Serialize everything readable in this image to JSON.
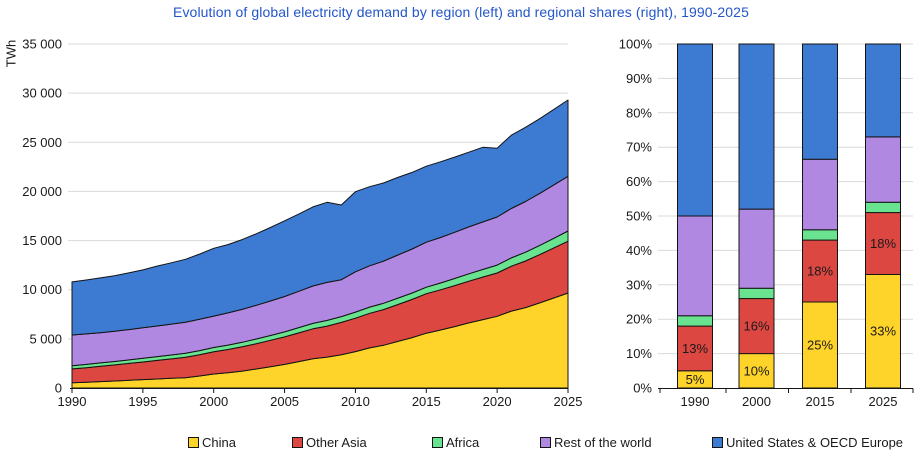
{
  "title": {
    "text": "Evolution of global electricity demand by region (left) and regional shares (right), 1990-2025",
    "color": "#2356CB"
  },
  "colors": {
    "china": "#FFD42A",
    "other_asia": "#DC4742",
    "africa": "#69E38F",
    "rest_of_world": "#B088E2",
    "us_oecd_europe": "#3D7AD1",
    "outline": "#141414",
    "gridline": "#D9D9D9",
    "axis": "#141414",
    "title_text": "#2356CB"
  },
  "legend": {
    "items": [
      {
        "label": "China",
        "color_key": "china"
      },
      {
        "label": "Other Asia",
        "color_key": "other_asia"
      },
      {
        "label": "Africa",
        "color_key": "africa"
      },
      {
        "label": "Rest of the world",
        "color_key": "rest_of_world"
      },
      {
        "label": "United States & OECD Europe",
        "color_key": "us_oecd_europe"
      }
    ]
  },
  "chart_data": [
    {
      "type": "area",
      "stacked": true,
      "title": "Evolution of global electricity demand by region",
      "xlabel": "",
      "ylabel": "TWh",
      "ylim": [
        0,
        35000
      ],
      "xlim": [
        1990,
        2025
      ],
      "grid": true,
      "y_tick_labels": [
        "0",
        "5 000",
        "10 000",
        "15 000",
        "20 000",
        "25 000",
        "30 000",
        "35 000"
      ],
      "x_tick_labels": [
        "1990",
        "1995",
        "2000",
        "2005",
        "2010",
        "2015",
        "2020",
        "2025"
      ],
      "x": [
        1990,
        1991,
        1992,
        1993,
        1994,
        1995,
        1996,
        1997,
        1998,
        1999,
        2000,
        2001,
        2002,
        2003,
        2004,
        2005,
        2006,
        2007,
        2008,
        2009,
        2010,
        2011,
        2012,
        2013,
        2014,
        2015,
        2016,
        2017,
        2018,
        2019,
        2020,
        2021,
        2022,
        2023,
        2024,
        2025
      ],
      "series": [
        {
          "name": "China",
          "color_key": "china",
          "values": [
            540,
            590,
            650,
            710,
            780,
            850,
            920,
            985,
            1050,
            1220,
            1420,
            1550,
            1720,
            1930,
            2160,
            2400,
            2690,
            2980,
            3140,
            3390,
            3700,
            4080,
            4350,
            4740,
            5130,
            5580,
            5900,
            6250,
            6620,
            6960,
            7300,
            7820,
            8180,
            8660,
            9160,
            9670
          ]
        },
        {
          "name": "Other Asia",
          "color_key": "other_asia",
          "values": [
            1400,
            1480,
            1560,
            1640,
            1720,
            1800,
            1890,
            1980,
            2070,
            2170,
            2270,
            2370,
            2470,
            2580,
            2690,
            2800,
            2920,
            3040,
            3160,
            3280,
            3400,
            3520,
            3640,
            3760,
            3880,
            4010,
            4090,
            4170,
            4250,
            4330,
            4400,
            4570,
            4740,
            4910,
            5090,
            5270
          ]
        },
        {
          "name": "Africa",
          "color_key": "africa",
          "values": [
            320,
            330,
            340,
            350,
            360,
            370,
            382,
            394,
            406,
            418,
            430,
            446,
            462,
            478,
            494,
            510,
            532,
            554,
            576,
            598,
            620,
            630,
            640,
            650,
            660,
            670,
            696,
            722,
            748,
            774,
            800,
            846,
            892,
            938,
            984,
            1030
          ]
        },
        {
          "name": "Rest of the world",
          "color_key": "rest_of_world",
          "values": [
            3130,
            3100,
            3080,
            3070,
            3080,
            3100,
            3120,
            3140,
            3160,
            3180,
            3200,
            3270,
            3350,
            3430,
            3510,
            3600,
            3700,
            3800,
            3870,
            3750,
            4100,
            4200,
            4290,
            4380,
            4470,
            4570,
            4630,
            4700,
            4770,
            4840,
            4900,
            5030,
            5160,
            5290,
            5430,
            5570
          ]
        },
        {
          "name": "United States & OECD Europe",
          "color_key": "us_oecd_europe",
          "values": [
            5400,
            5490,
            5570,
            5650,
            5770,
            5900,
            6090,
            6240,
            6410,
            6640,
            6890,
            6950,
            7100,
            7270,
            7480,
            7700,
            7850,
            8050,
            8150,
            7600,
            8150,
            8050,
            7950,
            7900,
            7800,
            7740,
            7700,
            7650,
            7600,
            7600,
            7000,
            7450,
            7550,
            7600,
            7680,
            7760
          ]
        }
      ]
    },
    {
      "type": "bar",
      "stacked": true,
      "percent": true,
      "title": "Regional shares",
      "ylim": [
        0,
        100
      ],
      "grid": true,
      "categories": [
        "1990",
        "2000",
        "2015",
        "2025"
      ],
      "y_tick_labels": [
        "0%",
        "10%",
        "20%",
        "30%",
        "40%",
        "50%",
        "60%",
        "70%",
        "80%",
        "90%",
        "100%"
      ],
      "series": [
        {
          "name": "China",
          "color_key": "china",
          "values": [
            5,
            10,
            25,
            33
          ],
          "labels": [
            "5%",
            "10%",
            "25%",
            "33%"
          ],
          "label_color": "#1a1a1a"
        },
        {
          "name": "Other Asia",
          "color_key": "other_asia",
          "values": [
            13,
            16,
            18,
            18
          ],
          "labels": [
            "13%",
            "16%",
            "18%",
            "18%"
          ],
          "label_color": "#ffffff"
        },
        {
          "name": "Africa",
          "color_key": "africa",
          "values": [
            3,
            3,
            3,
            3
          ]
        },
        {
          "name": "Rest of the world",
          "color_key": "rest_of_world",
          "values": [
            29,
            23,
            20.5,
            19
          ]
        },
        {
          "name": "United States & OECD Europe",
          "color_key": "us_oecd_europe",
          "values": [
            50,
            48,
            33.5,
            27
          ]
        }
      ]
    }
  ]
}
